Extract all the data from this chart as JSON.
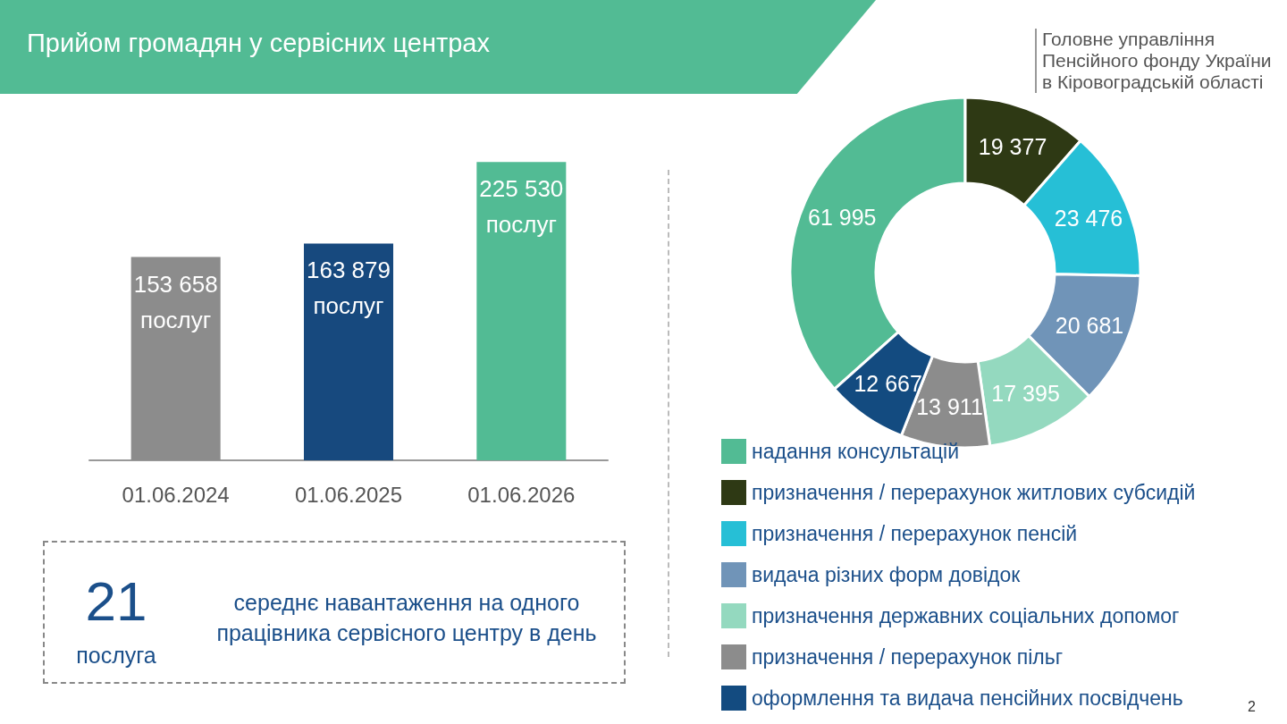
{
  "chart_data": [
    {
      "type": "bar",
      "title": "Прийом громадян у сервісних центрах",
      "categories": [
        "01.06.2024",
        "01.06.2025",
        "01.06.2026"
      ],
      "values": [
        153658,
        163879,
        225530
      ],
      "colors": [
        "#8c8c8c",
        "#17497e",
        "#52bb94"
      ],
      "value_labels": [
        "153 658 послуг",
        "163 879 послуг",
        "225 530 послуг"
      ],
      "annotations": [
        "21",
        "послуга",
        "середнє навантаження на одного працівника сервісного центру в день"
      ]
    },
    {
      "type": "donut",
      "categories": [
        "надання консультацій",
        "призначення / перерахунок житлових субсидій",
        "призначення / перерахунок пенсій",
        "видача різних форм довідок",
        "призначення державних соціальних допомог",
        "призначення / перерахунок пільг",
        "оформлення та видача пенсійних посвідчень"
      ],
      "values": [
        61995,
        19377,
        23476,
        20681,
        17395,
        13911,
        12667
      ],
      "colors": [
        "#52bb94",
        "#2e3914",
        "#26bfd6",
        "#7094b8",
        "#94d9bf",
        "#8c8c8c",
        "#134b80"
      ],
      "data_labels": true,
      "legend": "bottom",
      "annotations": [
        "Головне управління Пенсійного фонду України в Кіровоградській області",
        "2"
      ]
    }
  ]
}
